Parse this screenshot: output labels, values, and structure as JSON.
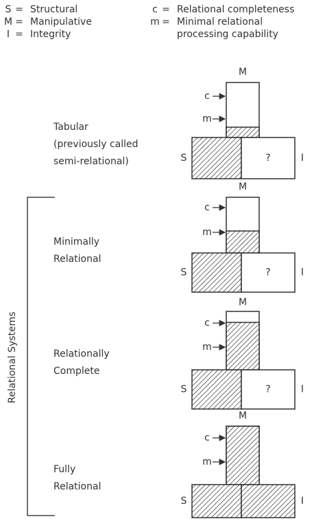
{
  "legend": [
    {
      "symbol": "S",
      "meaning": [
        "Structural"
      ]
    },
    {
      "symbol": "M",
      "meaning": [
        "Manipulative"
      ]
    },
    {
      "symbol": "I",
      "meaning": [
        "Integrity"
      ]
    },
    {
      "symbol": "c",
      "meaning": [
        "Relational completeness"
      ]
    },
    {
      "symbol": "m",
      "meaning": [
        "Minimal relational",
        "processing capability"
      ]
    }
  ],
  "legend_separator": "=",
  "box_labels": {
    "top": "M",
    "left": "S",
    "right": "I",
    "upper_arrow": "c",
    "lower_arrow": "m"
  },
  "levels": [
    {
      "label": [
        "Tabular",
        "(previously called",
        "semi-relational)"
      ],
      "unknown": "?"
    },
    {
      "label": [
        "Minimally",
        "Relational"
      ],
      "unknown": "?"
    },
    {
      "label": [
        "Relationally",
        "Complete"
      ],
      "unknown": "?"
    },
    {
      "label": [
        "Fully",
        "Relational"
      ]
    }
  ],
  "bracket_label": "Relational Systems"
}
